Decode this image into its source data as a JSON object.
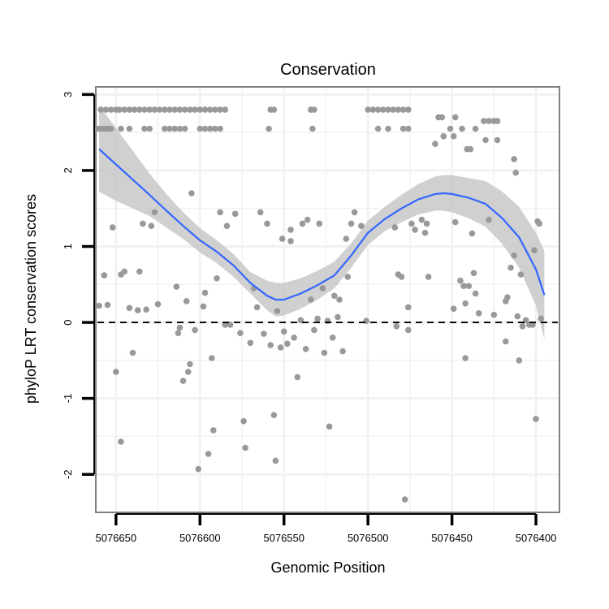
{
  "chart_data": {
    "type": "scatter",
    "title": "Conservation",
    "xlabel": "Genomic Position",
    "ylabel": "phyloP LRT conservation scores",
    "x_reversed": true,
    "xlim": [
      5076662,
      5076386
    ],
    "ylim": [
      -2.5,
      3.1
    ],
    "x_ticks": [
      5076650,
      5076600,
      5076550,
      5076500,
      5076450,
      5076400
    ],
    "x_tick_labels": [
      "5076650",
      "5076600",
      "5076550",
      "5076500",
      "5076450",
      "5076400"
    ],
    "y_ticks": [
      -2,
      -1,
      0,
      1,
      2,
      3
    ],
    "y_tick_labels": [
      "-2",
      "-1",
      "0",
      "1",
      "2",
      "3"
    ],
    "reference_line": {
      "y": 0,
      "style": "dashed"
    },
    "colors": {
      "points": "#999999",
      "smooth_line": "#3366ff",
      "ribbon": "#c8c8c8",
      "panel_border": "#808080",
      "grid": "#f2f2f2"
    },
    "series": [
      {
        "name": "scores",
        "points": [
          [
            5076661,
            2.55
          ],
          [
            5076659,
            2.55
          ],
          [
            5076657,
            2.55
          ],
          [
            5076655,
            2.55
          ],
          [
            5076653,
            2.55
          ],
          [
            5076659,
            2.8
          ],
          [
            5076656,
            2.8
          ],
          [
            5076653,
            2.8
          ],
          [
            5076650,
            2.8
          ],
          [
            5076648,
            2.8
          ],
          [
            5076645,
            2.8
          ],
          [
            5076642,
            2.8
          ],
          [
            5076639,
            2.8
          ],
          [
            5076636,
            2.8
          ],
          [
            5076633,
            2.8
          ],
          [
            5076630,
            2.8
          ],
          [
            5076627,
            2.8
          ],
          [
            5076624,
            2.8
          ],
          [
            5076621,
            2.8
          ],
          [
            5076618,
            2.8
          ],
          [
            5076615,
            2.8
          ],
          [
            5076612,
            2.8
          ],
          [
            5076609,
            2.8
          ],
          [
            5076606,
            2.8
          ],
          [
            5076603,
            2.8
          ],
          [
            5076600,
            2.8
          ],
          [
            5076597,
            2.8
          ],
          [
            5076594,
            2.8
          ],
          [
            5076591,
            2.8
          ],
          [
            5076588,
            2.8
          ],
          [
            5076585,
            2.8
          ],
          [
            5076647,
            2.55
          ],
          [
            5076642,
            2.55
          ],
          [
            5076633,
            2.55
          ],
          [
            5076630,
            2.55
          ],
          [
            5076621,
            2.55
          ],
          [
            5076618,
            2.55
          ],
          [
            5076615,
            2.55
          ],
          [
            5076612,
            2.55
          ],
          [
            5076609,
            2.55
          ],
          [
            5076600,
            2.55
          ],
          [
            5076597,
            2.55
          ],
          [
            5076594,
            2.55
          ],
          [
            5076591,
            2.55
          ],
          [
            5076588,
            2.55
          ],
          [
            5076558,
            2.8
          ],
          [
            5076556,
            2.8
          ],
          [
            5076534,
            2.8
          ],
          [
            5076532,
            2.8
          ],
          [
            5076559,
            2.55
          ],
          [
            5076533,
            2.55
          ],
          [
            5076500,
            2.8
          ],
          [
            5076497,
            2.8
          ],
          [
            5076494,
            2.8
          ],
          [
            5076491,
            2.8
          ],
          [
            5076488,
            2.8
          ],
          [
            5076485,
            2.8
          ],
          [
            5076482,
            2.8
          ],
          [
            5076479,
            2.8
          ],
          [
            5076476,
            2.8
          ],
          [
            5076494,
            2.55
          ],
          [
            5076488,
            2.55
          ],
          [
            5076479,
            2.55
          ],
          [
            5076476,
            2.55
          ],
          [
            5076458,
            2.7
          ],
          [
            5076456,
            2.7
          ],
          [
            5076448,
            2.7
          ],
          [
            5076431,
            2.65
          ],
          [
            5076428,
            2.65
          ],
          [
            5076425,
            2.65
          ],
          [
            5076423,
            2.65
          ],
          [
            5076451,
            2.55
          ],
          [
            5076444,
            2.55
          ],
          [
            5076436,
            2.55
          ],
          [
            5076455,
            2.45
          ],
          [
            5076449,
            2.45
          ],
          [
            5076430,
            2.4
          ],
          [
            5076423,
            2.4
          ],
          [
            5076460,
            2.35
          ],
          [
            5076441,
            2.28
          ],
          [
            5076439,
            2.28
          ],
          [
            5076413,
            2.15
          ],
          [
            5076412,
            1.97
          ],
          [
            5076660,
            0.22
          ],
          [
            5076657,
            0.62
          ],
          [
            5076655,
            0.23
          ],
          [
            5076652,
            1.25
          ],
          [
            5076650,
            -0.65
          ],
          [
            5076647,
            -1.57
          ],
          [
            5076647,
            0.63
          ],
          [
            5076645,
            0.67
          ],
          [
            5076642,
            0.19
          ],
          [
            5076640,
            -0.4
          ],
          [
            5076637,
            0.16
          ],
          [
            5076636,
            0.67
          ],
          [
            5076634,
            1.3
          ],
          [
            5076632,
            0.17
          ],
          [
            5076629,
            1.27
          ],
          [
            5076627,
            1.45
          ],
          [
            5076625,
            0.24
          ],
          [
            5076614,
            0.47
          ],
          [
            5076613,
            -0.14
          ],
          [
            5076612,
            -0.07
          ],
          [
            5076610,
            -0.77
          ],
          [
            5076608,
            0.28
          ],
          [
            5076607,
            -0.65
          ],
          [
            5076606,
            -0.55
          ],
          [
            5076605,
            1.7
          ],
          [
            5076603,
            -0.1
          ],
          [
            5076601,
            -1.93
          ],
          [
            5076598,
            0.21
          ],
          [
            5076597,
            0.39
          ],
          [
            5076595,
            -1.73
          ],
          [
            5076593,
            -0.47
          ],
          [
            5076592,
            -1.42
          ],
          [
            5076590,
            0.58
          ],
          [
            5076588,
            1.45
          ],
          [
            5076585,
            -0.03
          ],
          [
            5076584,
            1.27
          ],
          [
            5076582,
            -0.03
          ],
          [
            5076579,
            1.43
          ],
          [
            5076576,
            -0.14
          ],
          [
            5076574,
            -1.3
          ],
          [
            5076573,
            -1.65
          ],
          [
            5076570,
            -0.27
          ],
          [
            5076568,
            0.45
          ],
          [
            5076566,
            0.2
          ],
          [
            5076564,
            1.45
          ],
          [
            5076562,
            -0.15
          ],
          [
            5076560,
            1.3
          ],
          [
            5076558,
            -0.3
          ],
          [
            5076556,
            -1.22
          ],
          [
            5076555,
            -1.82
          ],
          [
            5076554,
            0.15
          ],
          [
            5076552,
            -0.33
          ],
          [
            5076551,
            1.1
          ],
          [
            5076550,
            -0.12
          ],
          [
            5076548,
            -0.28
          ],
          [
            5076546,
            1.07
          ],
          [
            5076546,
            1.22
          ],
          [
            5076544,
            -0.2
          ],
          [
            5076542,
            -0.72
          ],
          [
            5076540,
            0.03
          ],
          [
            5076539,
            1.3
          ],
          [
            5076537,
            -0.35
          ],
          [
            5076536,
            1.35
          ],
          [
            5076534,
            0.3
          ],
          [
            5076532,
            -0.1
          ],
          [
            5076530,
            0.05
          ],
          [
            5076529,
            1.3
          ],
          [
            5076527,
            0.45
          ],
          [
            5076526,
            -0.4
          ],
          [
            5076524,
            0.02
          ],
          [
            5076523,
            -1.37
          ],
          [
            5076521,
            -0.2
          ],
          [
            5076520,
            0.35
          ],
          [
            5076518,
            0.07
          ],
          [
            5076517,
            0.3
          ],
          [
            5076515,
            -0.38
          ],
          [
            5076513,
            1.1
          ],
          [
            5076512,
            0.6
          ],
          [
            5076510,
            1.3
          ],
          [
            5076508,
            1.45
          ],
          [
            5076504,
            1.27
          ],
          [
            5076501,
            0.02
          ],
          [
            5076484,
            1.25
          ],
          [
            5076483,
            -0.05
          ],
          [
            5076482,
            0.63
          ],
          [
            5076480,
            0.6
          ],
          [
            5076478,
            -2.33
          ],
          [
            5076476,
            0.2
          ],
          [
            5076476,
            -0.1
          ],
          [
            5076474,
            1.3
          ],
          [
            5076472,
            1.22
          ],
          [
            5076468,
            1.35
          ],
          [
            5076466,
            1.18
          ],
          [
            5076464,
            0.6
          ],
          [
            5076465,
            1.3
          ],
          [
            5076449,
            0.18
          ],
          [
            5076448,
            1.32
          ],
          [
            5076445,
            0.55
          ],
          [
            5076443,
            0.48
          ],
          [
            5076442,
            0.25
          ],
          [
            5076442,
            -0.47
          ],
          [
            5076440,
            0.48
          ],
          [
            5076438,
            1.17
          ],
          [
            5076437,
            0.65
          ],
          [
            5076436,
            0.38
          ],
          [
            5076434,
            0.12
          ],
          [
            5076428,
            1.35
          ],
          [
            5076425,
            0.1
          ],
          [
            5076418,
            0.28
          ],
          [
            5076418,
            -0.25
          ],
          [
            5076417,
            0.33
          ],
          [
            5076415,
            0.72
          ],
          [
            5076413,
            0.88
          ],
          [
            5076411,
            0.08
          ],
          [
            5076410,
            -0.5
          ],
          [
            5076409,
            0.63
          ],
          [
            5076408,
            -0.05
          ],
          [
            5076406,
            0.03
          ],
          [
            5076404,
            -0.03
          ],
          [
            5076402,
            -0.03
          ],
          [
            5076401,
            0.95
          ],
          [
            5076400,
            -1.27
          ],
          [
            5076399,
            1.33
          ],
          [
            5076398,
            1.3
          ],
          [
            5076397,
            0.05
          ]
        ]
      }
    ],
    "smooth": {
      "x": [
        5076660,
        5076650,
        5076640,
        5076630,
        5076620,
        5076610,
        5076600,
        5076590,
        5076580,
        5076570,
        5076560,
        5076555,
        5076550,
        5076540,
        5076530,
        5076520,
        5076510,
        5076500,
        5076490,
        5076480,
        5076470,
        5076460,
        5076455,
        5076450,
        5076440,
        5076430,
        5076420,
        5076410,
        5076400,
        5076395
      ],
      "y": [
        2.28,
        2.08,
        1.88,
        1.68,
        1.47,
        1.27,
        1.08,
        0.93,
        0.75,
        0.52,
        0.35,
        0.3,
        0.3,
        0.38,
        0.49,
        0.62,
        0.88,
        1.18,
        1.36,
        1.5,
        1.62,
        1.69,
        1.7,
        1.69,
        1.64,
        1.56,
        1.37,
        1.12,
        0.7,
        0.36
      ],
      "lower": [
        1.72,
        1.6,
        1.5,
        1.4,
        1.25,
        1.1,
        0.92,
        0.78,
        0.6,
        0.38,
        0.16,
        0.08,
        0.09,
        0.18,
        0.3,
        0.45,
        0.72,
        1.02,
        1.2,
        1.32,
        1.42,
        1.47,
        1.47,
        1.45,
        1.37,
        1.26,
        1.03,
        0.72,
        0.22,
        -0.22
      ],
      "upper": [
        2.85,
        2.56,
        2.26,
        1.96,
        1.69,
        1.45,
        1.24,
        1.08,
        0.9,
        0.66,
        0.55,
        0.52,
        0.52,
        0.58,
        0.68,
        0.8,
        1.04,
        1.34,
        1.52,
        1.68,
        1.82,
        1.92,
        1.94,
        1.94,
        1.9,
        1.86,
        1.72,
        1.52,
        1.18,
        0.94
      ]
    }
  }
}
